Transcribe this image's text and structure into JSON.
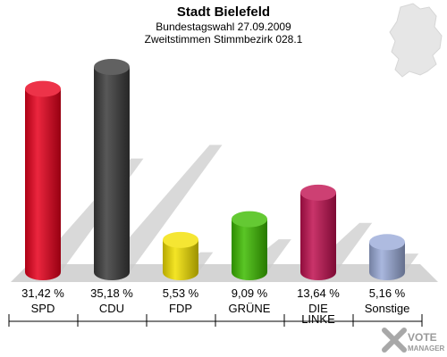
{
  "chart_data": {
    "type": "bar",
    "title": "Stadt Bielefeld",
    "subtitle_1": "Bundestagswahl 27.09.2009",
    "subtitle_2": "Zweitstimmen Stimmbezirk 028.1",
    "categories": [
      "SPD",
      "CDU",
      "FDP",
      "GRÜNE",
      "DIE LINKE",
      "Sonstige"
    ],
    "category_lines": [
      [
        "SPD"
      ],
      [
        "CDU"
      ],
      [
        "FDP"
      ],
      [
        "GRÜNE"
      ],
      [
        "DIE",
        "LINKE"
      ],
      [
        "Sonstige"
      ]
    ],
    "values": [
      31.42,
      35.18,
      5.53,
      9.09,
      13.64,
      5.16
    ],
    "value_labels": [
      "31,42 %",
      "35,18 %",
      "5,53 %",
      "9,09 %",
      "13,64 %",
      "5,16 %"
    ],
    "colors": [
      "#e8001c",
      "#3a3a3a",
      "#f2e000",
      "#3dbb00",
      "#c01050",
      "#9aaad8"
    ],
    "ylim": [
      0,
      35.18
    ],
    "grid": false,
    "legend": "none"
  },
  "watermark": {
    "line1": "VOTE",
    "line2": "MANAGER"
  }
}
